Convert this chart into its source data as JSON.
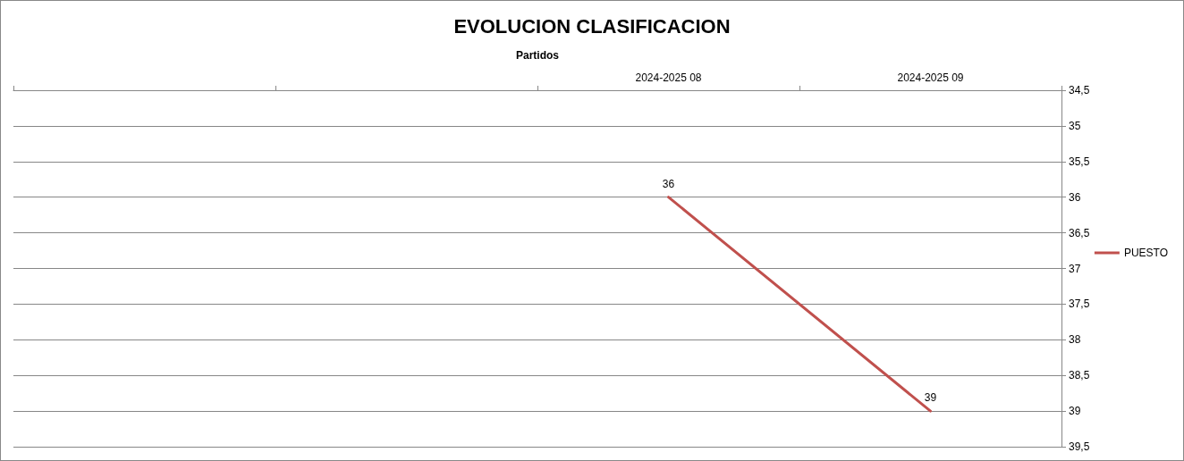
{
  "chart_data": {
    "type": "line",
    "title": "EVOLUCION CLASIFICACION",
    "xlabel": "Partidos",
    "categories": [
      null,
      null,
      "2024-2025 08",
      "2024-2025 09"
    ],
    "series": [
      {
        "name": "PUESTO",
        "color": "#c0504d",
        "values": [
          null,
          null,
          36,
          39
        ]
      }
    ],
    "ylim": [
      39.5,
      34.5
    ],
    "yticks": [
      {
        "value": 34.5,
        "label": "34,5"
      },
      35,
      {
        "value": 35.5,
        "label": "35,5"
      },
      36,
      {
        "value": 36.5,
        "label": "36,5"
      },
      37,
      {
        "value": 37.5,
        "label": "37,5"
      },
      38,
      {
        "value": 38.5,
        "label": "38,5"
      },
      39,
      {
        "value": 39.5,
        "label": "39,5"
      }
    ],
    "grid": "y",
    "legend": "right",
    "marker": "none",
    "line_style": "solid",
    "data_labels": true
  }
}
